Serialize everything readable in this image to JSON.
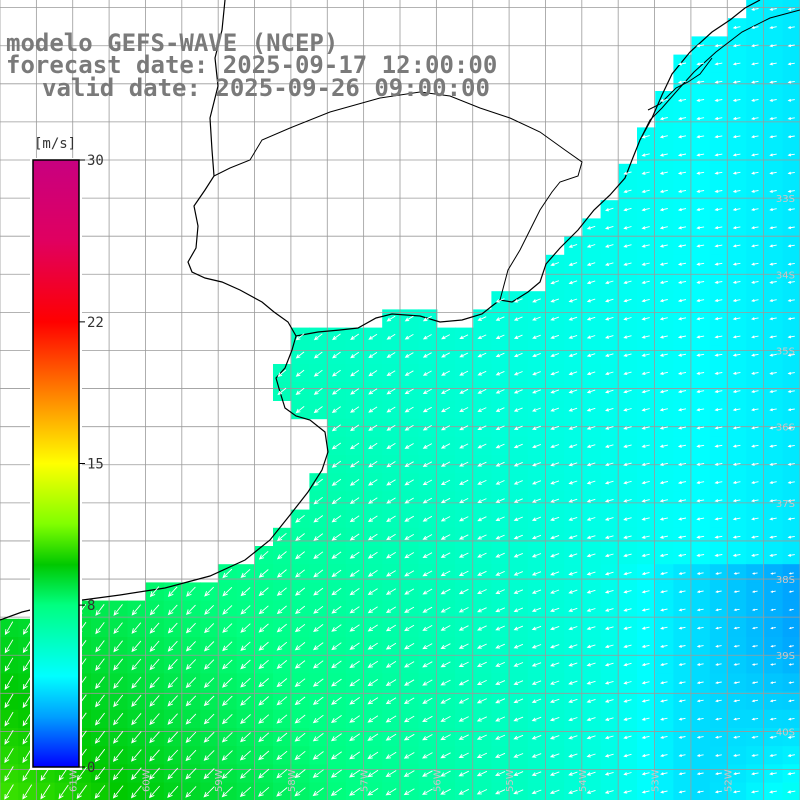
{
  "title": {
    "model": "modelo GEFS-WAVE (NCEP)",
    "forecast": "forecast date: 2025-09-17 12:00:00",
    "valid": "valid date: 2025-09-26 09:00:00"
  },
  "colorbar": {
    "unit": "[m/s]",
    "ticks": [
      "30",
      "22",
      "15",
      "8",
      "0"
    ],
    "tick_values": [
      30,
      22,
      15,
      8,
      0
    ],
    "min": 0,
    "max": 30,
    "colors": [
      "#0000ff",
      "#00a0ff",
      "#00ffff",
      "#00ff80",
      "#00c800",
      "#80ff00",
      "#ffff00",
      "#ff8000",
      "#ff0000",
      "#e00060",
      "#c80080"
    ]
  },
  "map": {
    "lon_range": [
      -62,
      -51
    ],
    "lat_range": [
      -40.9,
      -30.4
    ],
    "lat_labels": [
      "33S",
      "34S",
      "35S",
      "36S",
      "37S",
      "38S",
      "39S",
      "40S"
    ],
    "lon_labels": [
      "61W",
      "60W",
      "59W",
      "58W",
      "57W",
      "56W",
      "55W",
      "54W",
      "53W",
      "52W"
    ],
    "land_color": "#ffffff",
    "grid_color": "#9a9a9a",
    "coast_color": "#000000",
    "arrow_color": "#ffffff"
  },
  "wind_field": {
    "description_units": "m/s",
    "speed_sw_corner": 11,
    "speed_coast_north": 7,
    "speed_offshore_east": 4,
    "speed_southeast_min": 2,
    "direction_west_from_deg": 30,
    "direction_east_from_deg": 80
  }
}
